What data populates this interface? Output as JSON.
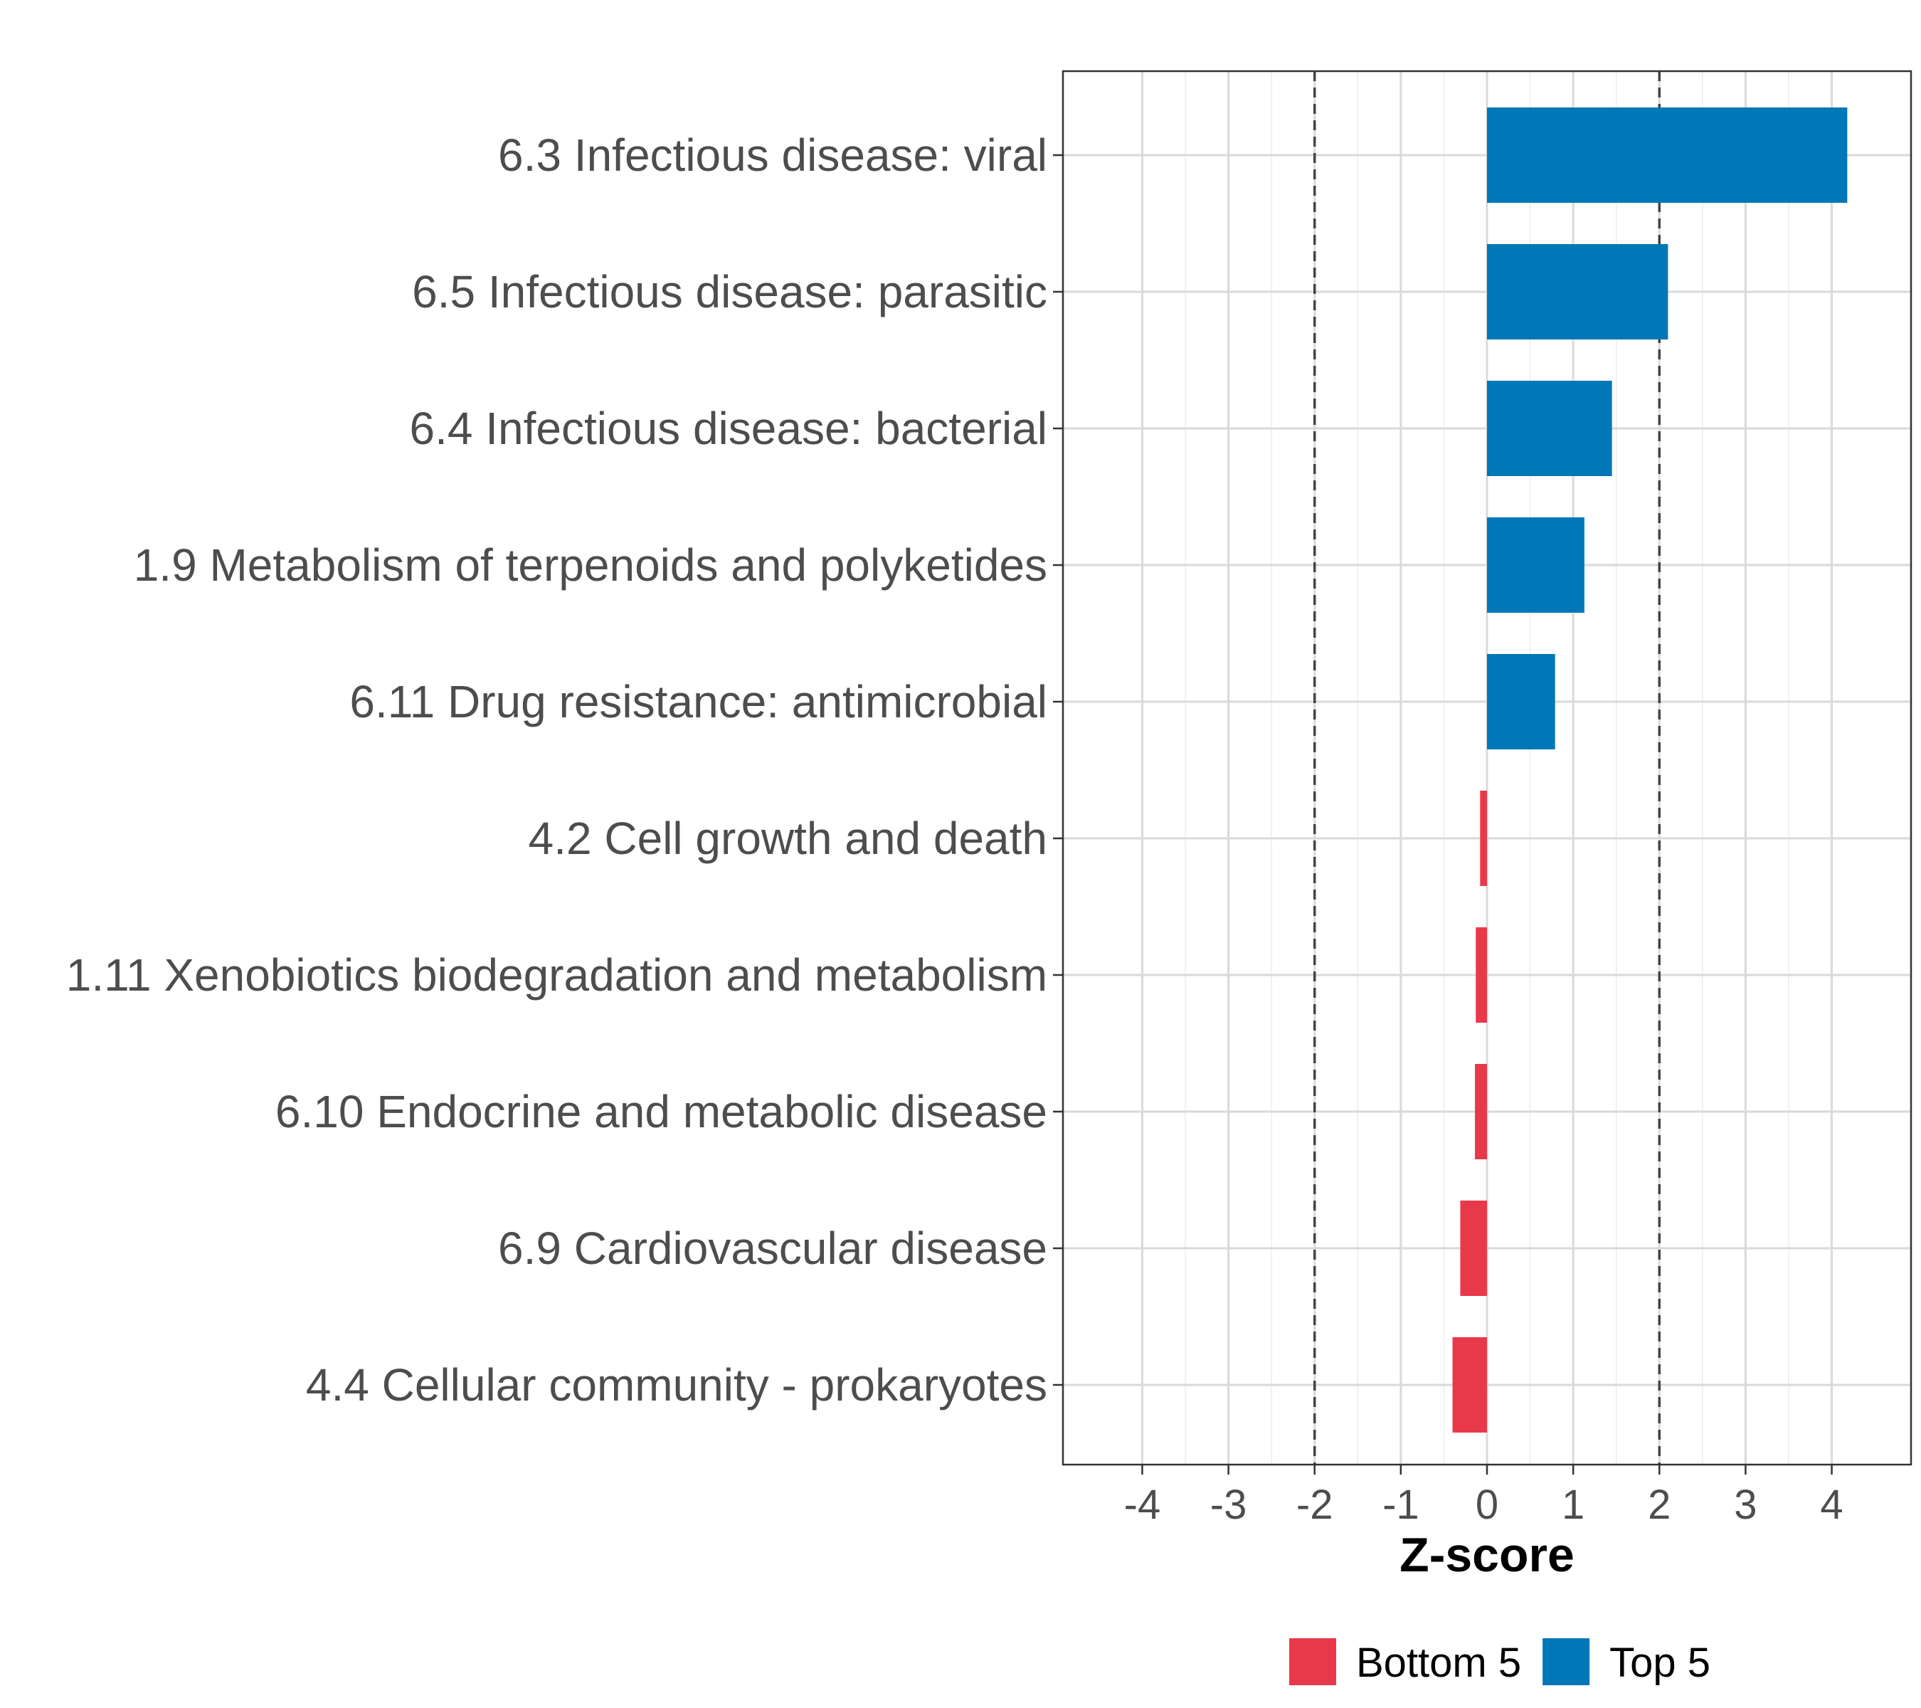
{
  "chart_data": {
    "type": "bar",
    "orientation": "horizontal",
    "categories": [
      "6.3 Infectious disease: viral",
      "6.5 Infectious disease: parasitic",
      "6.4 Infectious disease: bacterial",
      "1.9 Metabolism of terpenoids and polyketides",
      "6.11 Drug resistance: antimicrobial",
      "4.2 Cell growth and death",
      "1.11 Xenobiotics biodegradation and metabolism",
      "6.10 Endocrine and metabolic disease",
      "6.9 Cardiovascular disease",
      "4.4 Cellular community - prokaryotes"
    ],
    "values": [
      4.18,
      2.1,
      1.45,
      1.13,
      0.79,
      -0.08,
      -0.13,
      -0.14,
      -0.31,
      -0.4
    ],
    "groups": [
      "Top 5",
      "Top 5",
      "Top 5",
      "Top 5",
      "Top 5",
      "Bottom 5",
      "Bottom 5",
      "Bottom 5",
      "Bottom 5",
      "Bottom 5"
    ],
    "title": "",
    "xlabel": "Z-score",
    "ylabel": "",
    "xlim": [
      -4.92,
      4.92
    ],
    "xticks": [
      -4,
      -3,
      -2,
      -1,
      0,
      1,
      2,
      3,
      4
    ],
    "xtick_labels": [
      "-4",
      "-3",
      "-2",
      "-1",
      "0",
      "1",
      "2",
      "3",
      "4"
    ],
    "reference_lines": [
      -2,
      2
    ],
    "grid": true,
    "legend": {
      "position": "bottom",
      "items": [
        {
          "label": "Bottom 5",
          "color": "#e8394b"
        },
        {
          "label": "Top 5",
          "color": "#0077b6"
        }
      ]
    },
    "colors": {
      "Top 5": "#0077b6",
      "Bottom 5": "#e8394b"
    }
  }
}
